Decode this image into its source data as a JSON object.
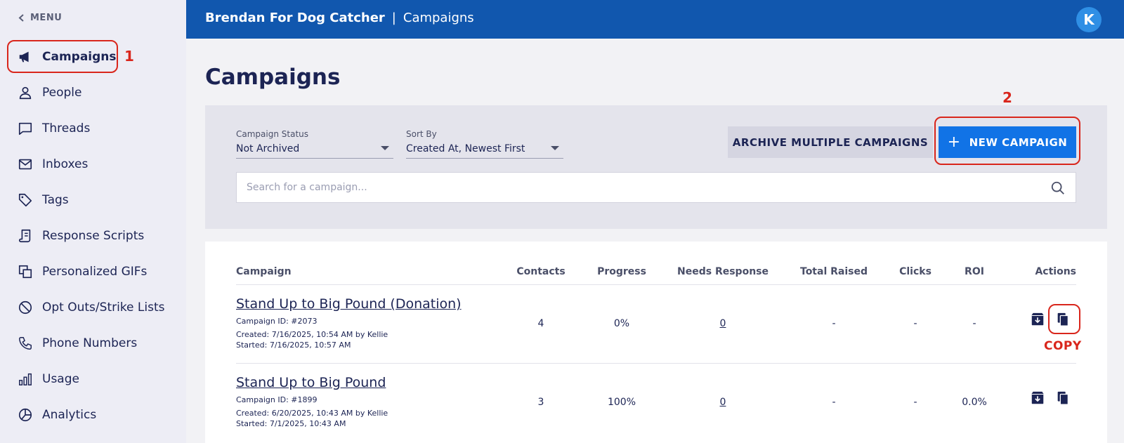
{
  "sidebar": {
    "menu_label": "MENU",
    "items": [
      {
        "label": "Campaigns",
        "icon": "megaphone-icon"
      },
      {
        "label": "People",
        "icon": "person-icon"
      },
      {
        "label": "Threads",
        "icon": "chat-bubble-icon"
      },
      {
        "label": "Inboxes",
        "icon": "envelope-icon"
      },
      {
        "label": "Tags",
        "icon": "tag-icon"
      },
      {
        "label": "Response Scripts",
        "icon": "script-icon"
      },
      {
        "label": "Personalized GIFs",
        "icon": "gif-stack-icon"
      },
      {
        "label": "Opt Outs/Strike Lists",
        "icon": "block-icon"
      },
      {
        "label": "Phone Numbers",
        "icon": "phone-icon"
      },
      {
        "label": "Usage",
        "icon": "bar-chart-icon"
      },
      {
        "label": "Analytics",
        "icon": "pie-chart-icon"
      }
    ]
  },
  "header": {
    "org": "Brendan For Dog Catcher",
    "separator": "|",
    "section": "Campaigns",
    "avatar_initial": "K"
  },
  "main": {
    "title": "Campaigns",
    "filters": {
      "status_label": "Campaign Status",
      "status_value": "Not Archived",
      "sort_label": "Sort By",
      "sort_value": "Created At, Newest First"
    },
    "archive_button": "ARCHIVE MULTIPLE CAMPAIGNS",
    "new_button": "NEW CAMPAIGN",
    "search_placeholder": "Search for a campaign..."
  },
  "table": {
    "columns": [
      "Campaign",
      "Contacts",
      "Progress",
      "Needs Response",
      "Total Raised",
      "Clicks",
      "ROI",
      "Actions"
    ],
    "rows": [
      {
        "name": "Stand Up to Big Pound (Donation)",
        "id": "Campaign ID: #2073",
        "created": "Created: 7/16/2025, 10:54 AM by Kellie",
        "started": "Started: 7/16/2025, 10:57 AM",
        "contacts": "4",
        "progress": "0%",
        "needs_response": "0",
        "total_raised": "-",
        "clicks": "-",
        "roi": "-"
      },
      {
        "name": "Stand Up to Big Pound",
        "id": "Campaign ID: #1899",
        "created": "Created: 6/20/2025, 10:43 AM by Kellie",
        "started": "Started: 7/1/2025, 10:43 AM",
        "contacts": "3",
        "progress": "100%",
        "needs_response": "0",
        "total_raised": "-",
        "clicks": "-",
        "roi": "0.0%"
      }
    ]
  },
  "annotations": {
    "step1": "1",
    "step2": "2",
    "copy": "COPY",
    "color": "#d9261c"
  },
  "colors": {
    "header_bg": "#1157ae",
    "primary_button": "#1173e6",
    "text": "#1c2454"
  }
}
